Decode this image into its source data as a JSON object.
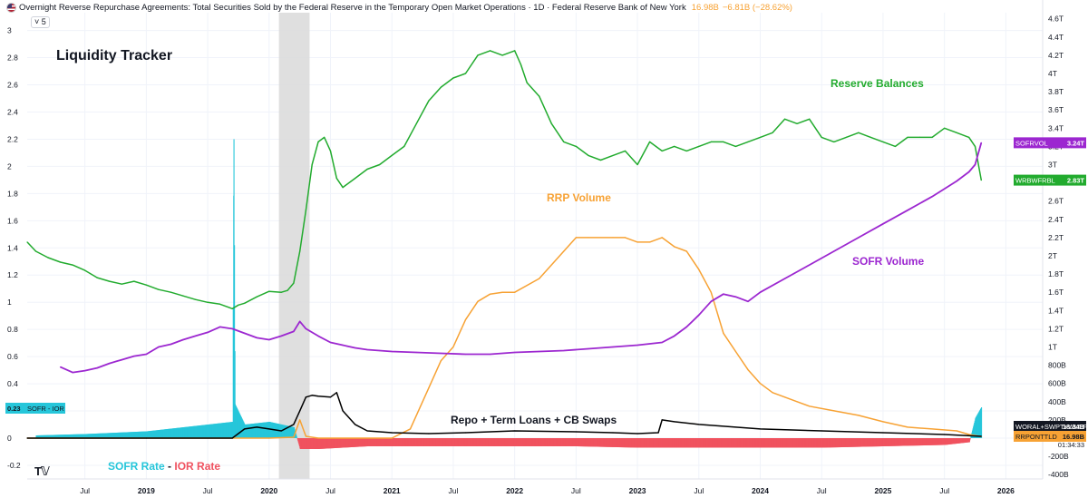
{
  "header": {
    "title": "Overnight Reverse Repurchase Agreements: Total Securities Sold by the Federal Reserve in the Temporary Open Market Operations · 1D · Federal Reserve Bank of New York",
    "value": "16.98B",
    "change": "−6.81B (−28.62%)",
    "collapse_label": "5"
  },
  "chart_data": {
    "type": "line",
    "title": "Liquidity Tracker",
    "x_axis": {
      "ticks": [
        "Jul",
        "2019",
        "Jul",
        "2020",
        "Jul",
        "2021",
        "Jul",
        "2022",
        "Jul",
        "2023",
        "Jul",
        "2024",
        "Jul",
        "2025",
        "Jul",
        "2026"
      ],
      "tick_dates": [
        2018.5,
        2019.0,
        2019.5,
        2020.0,
        2020.5,
        2021.0,
        2021.5,
        2022.0,
        2022.5,
        2023.0,
        2023.5,
        2024.0,
        2024.5,
        2025.0,
        2025.5,
        2026.0
      ],
      "range": [
        2018.03,
        2026.3
      ]
    },
    "left_axis": {
      "range": [
        -0.3,
        3.0
      ],
      "ticks": [
        "-0.2",
        "0",
        "0.2",
        "0.4",
        "0.6",
        "0.8",
        "1",
        "1.2",
        "1.4",
        "1.6",
        "1.8",
        "2",
        "2.2",
        "2.4",
        "2.6",
        "2.8",
        "3"
      ],
      "tick_values": [
        -0.2,
        0,
        0.2,
        0.4,
        0.6,
        0.8,
        1.0,
        1.2,
        1.4,
        1.6,
        1.8,
        2.0,
        2.2,
        2.4,
        2.6,
        2.8,
        3.0
      ]
    },
    "right_axis": {
      "ticks": [
        "-400B",
        "-200B",
        "0",
        "200B",
        "400B",
        "600B",
        "800B",
        "1T",
        "1.2T",
        "1.4T",
        "1.6T",
        "1.8T",
        "2T",
        "2.2T",
        "2.4T",
        "2.6T",
        "2.8T",
        "3T",
        "3.2T",
        "3.4T",
        "3.6T",
        "3.8T",
        "4T",
        "4.2T",
        "4.4T",
        "4.6T"
      ],
      "tick_values": [
        -0.4,
        -0.2,
        0,
        0.2,
        0.4,
        0.6,
        0.8,
        1.0,
        1.2,
        1.4,
        1.6,
        1.8,
        2.0,
        2.2,
        2.4,
        2.6,
        2.8,
        3.0,
        3.2,
        3.4,
        3.6,
        3.8,
        4.0,
        4.2,
        4.4,
        4.6
      ]
    },
    "shaded_region": [
      2020.08,
      2020.33
    ],
    "grid": true,
    "annotations": {
      "title": "Liquidity Tracker",
      "reserve": "Reserve Balances",
      "rrp": "RRP Volume",
      "sofr_volume": "SOFR Volume",
      "repo": "Repo + Term Loans + CB Swaps",
      "sofr_rate": "SOFR Rate",
      "minus": " - ",
      "ior_rate": "IOR Rate"
    },
    "series": [
      {
        "name": "Reserve Balances",
        "ticker": "WRBWFRBL",
        "last_value": "2.83T",
        "color": "#22ab2e",
        "axis": "right",
        "x": [
          2018.03,
          2018.1,
          2018.2,
          2018.3,
          2018.4,
          2018.5,
          2018.6,
          2018.7,
          2018.8,
          2018.9,
          2019.0,
          2019.1,
          2019.2,
          2019.3,
          2019.4,
          2019.5,
          2019.6,
          2019.7,
          2019.75,
          2019.8,
          2019.9,
          2020.0,
          2020.1,
          2020.15,
          2020.2,
          2020.25,
          2020.3,
          2020.35,
          2020.4,
          2020.45,
          2020.5,
          2020.55,
          2020.6,
          2020.7,
          2020.8,
          2020.9,
          2021.0,
          2021.1,
          2021.2,
          2021.3,
          2021.4,
          2021.5,
          2021.6,
          2021.7,
          2021.8,
          2021.9,
          2022.0,
          2022.05,
          2022.1,
          2022.2,
          2022.3,
          2022.4,
          2022.5,
          2022.6,
          2022.7,
          2022.8,
          2022.9,
          2023.0,
          2023.1,
          2023.2,
          2023.3,
          2023.4,
          2023.5,
          2023.6,
          2023.7,
          2023.8,
          2023.9,
          2024.0,
          2024.1,
          2024.2,
          2024.3,
          2024.4,
          2024.5,
          2024.6,
          2024.7,
          2024.8,
          2024.9,
          2025.0,
          2025.1,
          2025.2,
          2025.3,
          2025.4,
          2025.5,
          2025.6,
          2025.7,
          2025.75,
          2025.8
        ],
        "values": [
          2.15,
          2.05,
          1.98,
          1.93,
          1.9,
          1.84,
          1.76,
          1.72,
          1.69,
          1.72,
          1.68,
          1.63,
          1.6,
          1.56,
          1.52,
          1.49,
          1.47,
          1.42,
          1.46,
          1.48,
          1.55,
          1.61,
          1.6,
          1.62,
          1.7,
          2.05,
          2.5,
          3.0,
          3.25,
          3.3,
          3.15,
          2.85,
          2.75,
          2.85,
          2.95,
          3.0,
          3.1,
          3.2,
          3.45,
          3.7,
          3.85,
          3.95,
          4.0,
          4.2,
          4.25,
          4.2,
          4.25,
          4.1,
          3.9,
          3.75,
          3.45,
          3.25,
          3.2,
          3.1,
          3.05,
          3.1,
          3.15,
          3.0,
          3.25,
          3.15,
          3.2,
          3.15,
          3.2,
          3.25,
          3.25,
          3.2,
          3.25,
          3.3,
          3.35,
          3.5,
          3.45,
          3.5,
          3.3,
          3.25,
          3.3,
          3.35,
          3.3,
          3.25,
          3.2,
          3.3,
          3.3,
          3.3,
          3.4,
          3.35,
          3.3,
          3.2,
          2.83
        ]
      },
      {
        "name": "SOFR Volume",
        "ticker": "SOFRVOL",
        "last_value": "3.24T",
        "color": "#9c27d0",
        "axis": "right",
        "x": [
          2018.3,
          2018.4,
          2018.5,
          2018.6,
          2018.7,
          2018.8,
          2018.9,
          2019.0,
          2019.1,
          2019.2,
          2019.3,
          2019.4,
          2019.5,
          2019.6,
          2019.7,
          2019.8,
          2019.9,
          2020.0,
          2020.1,
          2020.2,
          2020.25,
          2020.3,
          2020.4,
          2020.5,
          2020.6,
          2020.7,
          2020.8,
          2020.9,
          2021.0,
          2021.2,
          2021.4,
          2021.6,
          2021.8,
          2022.0,
          2022.2,
          2022.4,
          2022.6,
          2022.8,
          2023.0,
          2023.2,
          2023.3,
          2023.4,
          2023.5,
          2023.6,
          2023.7,
          2023.8,
          2023.9,
          2024.0,
          2024.2,
          2024.4,
          2024.6,
          2024.8,
          2025.0,
          2025.2,
          2025.4,
          2025.6,
          2025.7,
          2025.75,
          2025.8
        ],
        "values": [
          0.78,
          0.72,
          0.74,
          0.77,
          0.82,
          0.86,
          0.9,
          0.92,
          1.0,
          1.03,
          1.08,
          1.12,
          1.16,
          1.22,
          1.2,
          1.15,
          1.1,
          1.08,
          1.12,
          1.17,
          1.28,
          1.2,
          1.12,
          1.05,
          1.02,
          0.99,
          0.97,
          0.96,
          0.95,
          0.94,
          0.93,
          0.92,
          0.92,
          0.94,
          0.95,
          0.96,
          0.98,
          1.0,
          1.02,
          1.05,
          1.12,
          1.22,
          1.35,
          1.5,
          1.58,
          1.55,
          1.5,
          1.6,
          1.75,
          1.9,
          2.05,
          2.2,
          2.35,
          2.5,
          2.65,
          2.82,
          2.92,
          3.0,
          3.24
        ]
      },
      {
        "name": "RRP Volume",
        "ticker": "RRPONTTLD",
        "last_value": "16.98B",
        "extra_label": "01:34:33",
        "color": "#f7a234",
        "axis": "right",
        "x": [
          2018.03,
          2019.0,
          2020.0,
          2020.2,
          2020.25,
          2020.3,
          2020.4,
          2021.0,
          2021.15,
          2021.3,
          2021.4,
          2021.5,
          2021.6,
          2021.7,
          2021.8,
          2021.9,
          2022.0,
          2022.2,
          2022.4,
          2022.5,
          2022.6,
          2022.8,
          2022.9,
          2023.0,
          2023.1,
          2023.2,
          2023.3,
          2023.4,
          2023.5,
          2023.6,
          2023.7,
          2023.8,
          2023.9,
          2024.0,
          2024.1,
          2024.2,
          2024.3,
          2024.4,
          2024.6,
          2024.8,
          2025.0,
          2025.2,
          2025.4,
          2025.6,
          2025.7,
          2025.8
        ],
        "values": [
          0.0,
          0.0,
          0.0,
          0.01,
          0.2,
          0.02,
          0.0,
          0.0,
          0.1,
          0.55,
          0.85,
          1.0,
          1.3,
          1.5,
          1.58,
          1.6,
          1.6,
          1.75,
          2.05,
          2.2,
          2.2,
          2.2,
          2.2,
          2.15,
          2.15,
          2.2,
          2.1,
          2.05,
          1.85,
          1.6,
          1.15,
          0.95,
          0.75,
          0.6,
          0.5,
          0.45,
          0.4,
          0.35,
          0.3,
          0.25,
          0.18,
          0.12,
          0.1,
          0.08,
          0.04,
          0.017
        ]
      },
      {
        "name": "Repo + Term Loans + CB Swaps",
        "ticker": "WORAL+SWPT+WLCFLL",
        "last_value": "18.34B",
        "color": "#000000",
        "axis": "right",
        "x": [
          2018.03,
          2019.0,
          2019.7,
          2019.75,
          2019.8,
          2019.9,
          2020.0,
          2020.1,
          2020.2,
          2020.25,
          2020.3,
          2020.35,
          2020.4,
          2020.5,
          2020.55,
          2020.6,
          2020.7,
          2020.8,
          2021.0,
          2021.3,
          2021.6,
          2022.0,
          2022.5,
          2022.8,
          2023.0,
          2023.17,
          2023.2,
          2023.3,
          2023.5,
          2023.8,
          2024.0,
          2024.5,
          2025.0,
          2025.5,
          2025.8
        ],
        "values": [
          0.0,
          0.0,
          0.0,
          0.05,
          0.1,
          0.12,
          0.1,
          0.08,
          0.15,
          0.3,
          0.45,
          0.47,
          0.46,
          0.45,
          0.5,
          0.3,
          0.15,
          0.08,
          0.06,
          0.05,
          0.06,
          0.08,
          0.07,
          0.06,
          0.05,
          0.06,
          0.2,
          0.18,
          0.15,
          0.12,
          0.1,
          0.08,
          0.06,
          0.04,
          0.02
        ]
      },
      {
        "name": "SOFR Rate - IOR Rate",
        "ticker": "SOFR - IOR",
        "last_value": "0.23",
        "color": "#26c6da",
        "neg_color": "#f0525f",
        "axis": "left",
        "x": [
          2018.1,
          2018.5,
          2019.0,
          2019.3,
          2019.5,
          2019.7,
          2019.71,
          2019.72,
          2019.8,
          2020.0,
          2020.2,
          2020.25,
          2020.4,
          2020.8,
          2021.0,
          2021.5,
          2022.0,
          2022.5,
          2023.0,
          2023.5,
          2024.0,
          2024.5,
          2025.0,
          2025.5,
          2025.7,
          2025.75,
          2025.8
        ],
        "values": [
          0.02,
          0.03,
          0.05,
          0.08,
          0.1,
          0.12,
          2.2,
          0.25,
          0.1,
          0.12,
          0.08,
          -0.08,
          -0.08,
          -0.06,
          -0.06,
          -0.06,
          -0.06,
          -0.06,
          -0.07,
          -0.07,
          -0.07,
          -0.07,
          -0.06,
          -0.05,
          -0.03,
          0.15,
          0.23
        ]
      }
    ]
  }
}
